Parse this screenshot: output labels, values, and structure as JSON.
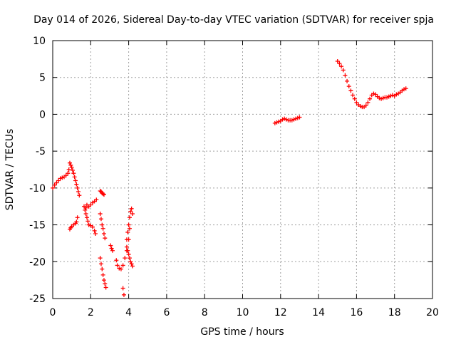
{
  "chart_data": {
    "type": "scatter",
    "title": "Day 014 of 2026, Sidereal Day-to-day VTEC variation (SDTVAR) for receiver spja",
    "xlabel": "GPS time / hours",
    "ylabel": "SDTVAR / TECUs",
    "xlim": [
      0,
      20
    ],
    "ylim": [
      -25,
      10
    ],
    "x_ticks": [
      0,
      2,
      4,
      6,
      8,
      10,
      12,
      14,
      16,
      18,
      20
    ],
    "y_ticks": [
      10,
      5,
      0,
      -5,
      -10,
      -15,
      -20,
      -25
    ],
    "x_tick_labels": [
      "0",
      "2",
      "4",
      "6",
      "8",
      "10",
      "12",
      "14",
      "16",
      "18",
      "20"
    ],
    "y_tick_labels": [
      "10",
      "5",
      "0",
      "-5",
      "-10",
      "-15",
      "-20",
      "-25"
    ],
    "grid": true,
    "marker": "plus",
    "color": "#ff0000",
    "series": [
      {
        "name": "segment-1",
        "x": [
          0.0,
          0.1,
          0.2,
          0.3,
          0.4,
          0.5,
          0.6,
          0.7,
          0.8,
          0.85,
          0.9,
          0.95,
          1.0,
          1.05,
          1.1,
          1.15,
          1.2,
          1.25,
          1.3,
          1.35,
          1.4
        ],
        "y": [
          -10.0,
          -9.6,
          -9.3,
          -9.0,
          -8.7,
          -8.6,
          -8.5,
          -8.3,
          -8.0,
          -7.5,
          -6.6,
          -6.9,
          -7.2,
          -7.6,
          -8.0,
          -8.5,
          -9.0,
          -9.5,
          -10.0,
          -10.5,
          -11.0
        ]
      },
      {
        "name": "segment-2",
        "x": [
          0.9,
          0.95,
          1.0,
          1.1,
          1.2,
          1.25,
          1.3
        ],
        "y": [
          -15.6,
          -15.4,
          -15.2,
          -15.0,
          -14.8,
          -14.6,
          -14.0
        ]
      },
      {
        "name": "segment-3",
        "x": [
          1.65,
          1.7,
          1.75,
          1.8,
          1.9,
          2.0,
          2.1,
          2.2,
          2.3
        ],
        "y": [
          -12.5,
          -13.0,
          -12.7,
          -12.3,
          -12.5,
          -12.3,
          -12.0,
          -11.8,
          -11.6
        ]
      },
      {
        "name": "segment-4",
        "x": [
          1.75,
          1.8,
          1.85,
          1.9,
          2.0,
          2.1,
          2.2,
          2.25
        ],
        "y": [
          -13.5,
          -14.0,
          -14.5,
          -15.0,
          -15.1,
          -15.3,
          -15.8,
          -16.2
        ]
      },
      {
        "name": "segment-5",
        "x": [
          2.5,
          2.55,
          2.6,
          2.65,
          2.7
        ],
        "y": [
          -10.4,
          -10.5,
          -10.7,
          -10.8,
          -10.9
        ]
      },
      {
        "name": "segment-6",
        "x": [
          2.5,
          2.55,
          2.6,
          2.65,
          2.7,
          2.75
        ],
        "y": [
          -13.5,
          -14.2,
          -15.0,
          -15.5,
          -16.2,
          -16.8
        ]
      },
      {
        "name": "segment-7",
        "x": [
          2.5,
          2.55,
          2.6,
          2.65,
          2.7,
          2.75,
          2.8
        ],
        "y": [
          -19.5,
          -20.3,
          -21.0,
          -21.8,
          -22.5,
          -23.0,
          -23.5
        ]
      },
      {
        "name": "segment-8",
        "x": [
          3.05,
          3.1,
          3.15
        ],
        "y": [
          -17.8,
          -18.2,
          -18.5
        ]
      },
      {
        "name": "segment-9",
        "x": [
          3.35,
          3.4,
          3.5,
          3.6,
          3.7,
          3.8,
          3.9,
          4.0,
          4.05
        ],
        "y": [
          -19.8,
          -20.5,
          -20.9,
          -21.0,
          -20.5,
          -19.5,
          -18.5,
          -17.0,
          -15.5
        ]
      },
      {
        "name": "segment-10",
        "x": [
          3.7,
          3.75
        ],
        "y": [
          -23.6,
          -24.5
        ]
      },
      {
        "name": "segment-11",
        "x": [
          3.9,
          3.95,
          4.0,
          4.05,
          4.1,
          4.15,
          4.2
        ],
        "y": [
          -17.0,
          -16.0,
          -15.0,
          -14.0,
          -13.2,
          -12.8,
          -13.5
        ]
      },
      {
        "name": "segment-12",
        "x": [
          3.9,
          3.95,
          4.0,
          4.05,
          4.1,
          4.15,
          4.2
        ],
        "y": [
          -18.0,
          -18.5,
          -19.0,
          -19.5,
          -20.0,
          -20.3,
          -20.6
        ]
      },
      {
        "name": "segment-13",
        "x": [
          11.7,
          11.8,
          11.9,
          12.0,
          12.1,
          12.2,
          12.3,
          12.4,
          12.5,
          12.6,
          12.7,
          12.8,
          12.9,
          13.0
        ],
        "y": [
          -1.2,
          -1.1,
          -1.0,
          -0.9,
          -0.7,
          -0.6,
          -0.7,
          -0.8,
          -0.8,
          -0.8,
          -0.7,
          -0.6,
          -0.5,
          -0.4
        ]
      },
      {
        "name": "segment-14",
        "x": [
          15.0,
          15.1,
          15.2,
          15.3,
          15.4,
          15.5,
          15.6,
          15.7,
          15.8,
          15.9,
          16.0,
          16.1,
          16.2,
          16.3,
          16.4,
          16.5,
          16.6,
          16.7,
          16.8,
          16.9,
          17.0,
          17.1,
          17.2,
          17.3,
          17.4,
          17.5,
          17.6,
          17.7,
          17.8,
          17.9,
          18.0,
          18.1,
          18.2,
          18.3,
          18.4,
          18.5,
          18.6
        ],
        "y": [
          7.2,
          6.9,
          6.5,
          6.0,
          5.3,
          4.5,
          3.8,
          3.2,
          2.6,
          2.1,
          1.6,
          1.3,
          1.1,
          1.0,
          1.0,
          1.2,
          1.6,
          2.1,
          2.6,
          2.8,
          2.7,
          2.4,
          2.2,
          2.1,
          2.2,
          2.3,
          2.3,
          2.4,
          2.5,
          2.6,
          2.5,
          2.7,
          2.8,
          3.0,
          3.2,
          3.4,
          3.5
        ]
      }
    ]
  }
}
